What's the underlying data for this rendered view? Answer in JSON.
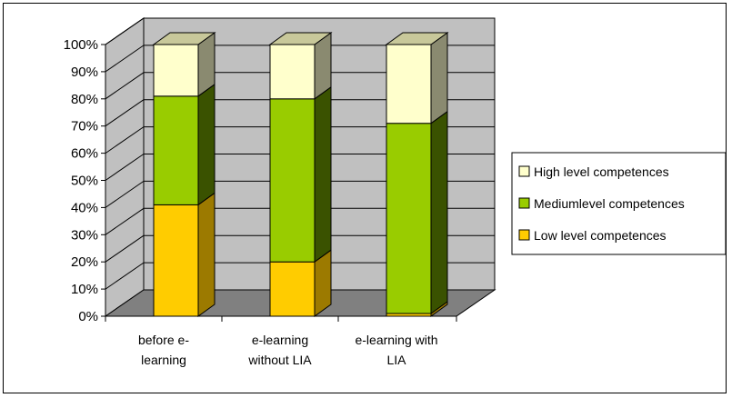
{
  "chart_data": {
    "type": "bar",
    "stacked": true,
    "percent": true,
    "three_d": true,
    "categories": [
      [
        "before e-",
        "learning"
      ],
      [
        "e-learning",
        "without LIA"
      ],
      [
        "e-learning with",
        "LIA"
      ]
    ],
    "series": [
      {
        "name": "Low level competences",
        "values": [
          41,
          20,
          1
        ],
        "color": "#ffcc00",
        "side": "#9c7a00",
        "top": "#e6b800"
      },
      {
        "name": "Medium level competences",
        "values": [
          40,
          60,
          70
        ],
        "color": "#99cc00",
        "side": "#3a5200",
        "top": "#7aa300"
      },
      {
        "name": "High level competences",
        "values": [
          19,
          20,
          29
        ],
        "color": "#ffffcc",
        "side": "#8a8a70",
        "top": "#c8c89a"
      }
    ],
    "legend_labels": [
      "High level competences",
      "Mediumlevel competences",
      "Low level competences"
    ],
    "legend_order": [
      2,
      1,
      0
    ],
    "yticks": [
      "0%",
      "10%",
      "20%",
      "30%",
      "40%",
      "50%",
      "60%",
      "70%",
      "80%",
      "90%",
      "100%"
    ],
    "ylim": [
      0,
      100
    ],
    "grid": true,
    "legend_position": "right",
    "colors": {
      "wall": "#c0c0c0",
      "floor": "#808080",
      "grid": "#000000"
    }
  }
}
